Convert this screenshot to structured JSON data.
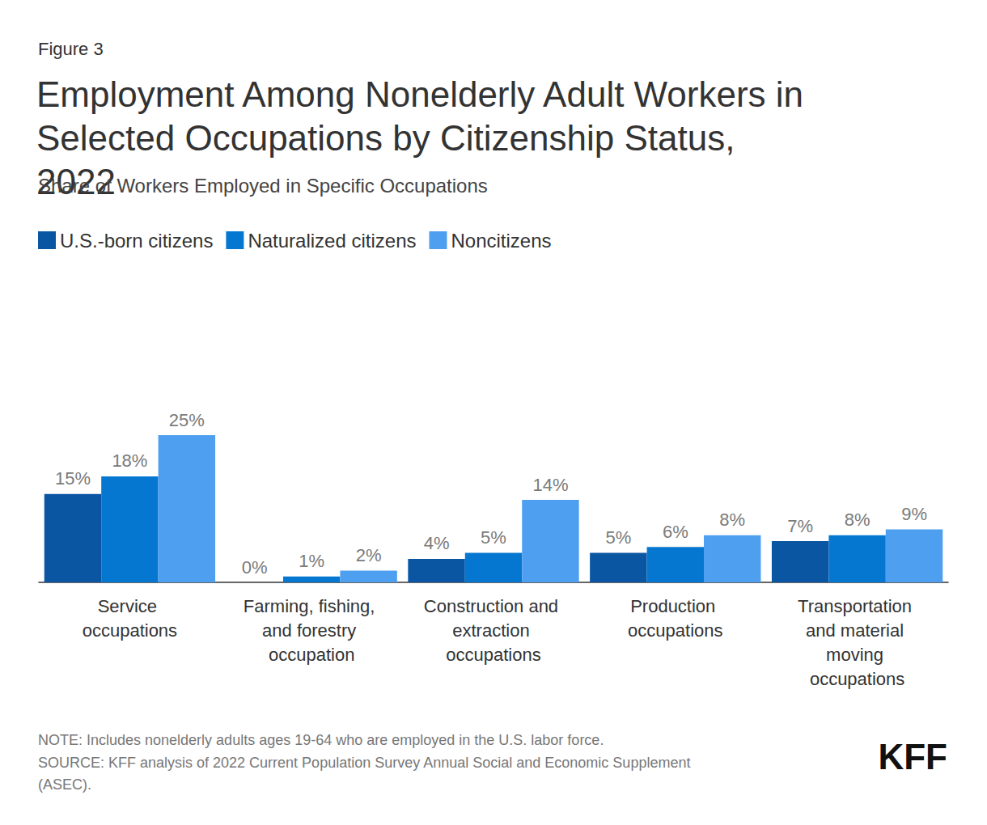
{
  "chart_data": {
    "type": "bar",
    "figure_label": "Figure 3",
    "title": "Employment Among Nonelderly Adult Workers in Selected Occupations by Citizenship Status, 2022",
    "subtitle": "Share of Workers Employed in Specific Occupations",
    "categories": [
      "Service occupations",
      "Farming, fishing, and forestry occupation",
      "Construction and extraction occupations",
      "Production occupations",
      "Transportation and material moving occupations"
    ],
    "series": [
      {
        "name": "U.S.-born citizens",
        "color": "#0a56a3",
        "values": [
          15,
          0,
          4,
          5,
          7
        ],
        "value_labels": [
          "15%",
          "0%",
          "4%",
          "5%",
          "7%"
        ]
      },
      {
        "name": "Naturalized citizens",
        "color": "#0577d1",
        "values": [
          18,
          1,
          5,
          6,
          8
        ],
        "value_labels": [
          "18%",
          "1%",
          "5%",
          "6%",
          "8%"
        ]
      },
      {
        "name": "Noncitizens",
        "color": "#4f9ff0",
        "values": [
          25,
          2,
          14,
          8,
          9
        ],
        "value_labels": [
          "25%",
          "2%",
          "14%",
          "8%",
          "9%"
        ]
      }
    ],
    "ylim": [
      0,
      50
    ],
    "grid": false,
    "legend": "top-left",
    "data_labels": true,
    "tick_labels": "x",
    "notes": [
      "NOTE: Includes nonelderly adults ages 19-64 who are employed in the U.S. labor force.",
      "SOURCE: KFF analysis of 2022 Current Population Survey Annual Social and Economic Supplement (ASEC)."
    ],
    "logo": "KFF"
  }
}
